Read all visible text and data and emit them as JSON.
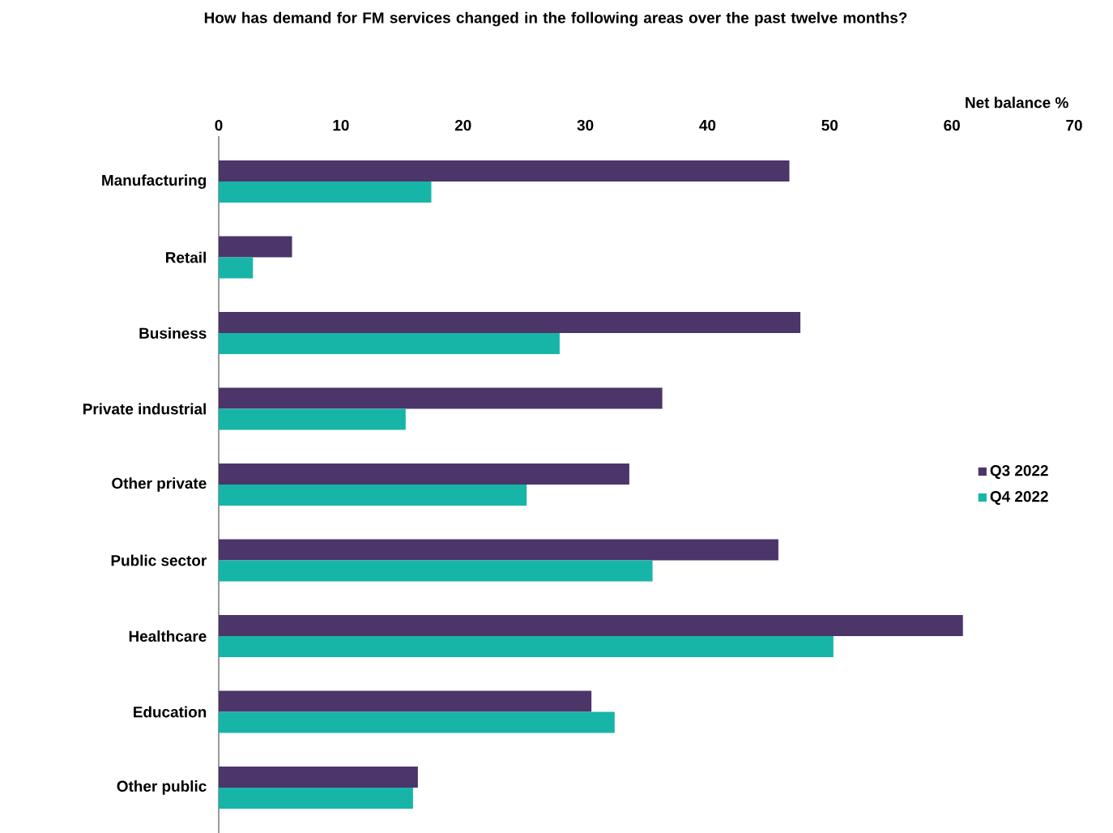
{
  "chart_data": {
    "type": "bar",
    "orientation": "horizontal",
    "title": "How has demand for FM services changed in the following areas over the past twelve months?",
    "xlabel": "Net balance %",
    "categories": [
      "Manufacturing",
      "Retail",
      "Business",
      "Private industrial",
      "Other private",
      "Public sector",
      "Healthcare",
      "Education",
      "Other public"
    ],
    "series": [
      {
        "name": "Q3 2022",
        "color": "#4b3569",
        "values": [
          46.7,
          6.0,
          47.6,
          36.3,
          33.6,
          45.8,
          60.9,
          30.5,
          16.3
        ]
      },
      {
        "name": "Q4 2022",
        "color": "#17b5a8",
        "values": [
          17.4,
          2.8,
          27.9,
          15.3,
          25.2,
          35.5,
          50.3,
          32.4,
          15.9
        ]
      }
    ],
    "xlim": [
      0,
      70
    ],
    "xticks": [
      0,
      10,
      20,
      30,
      40,
      50,
      60,
      70
    ],
    "legend": "right",
    "grid": false
  }
}
